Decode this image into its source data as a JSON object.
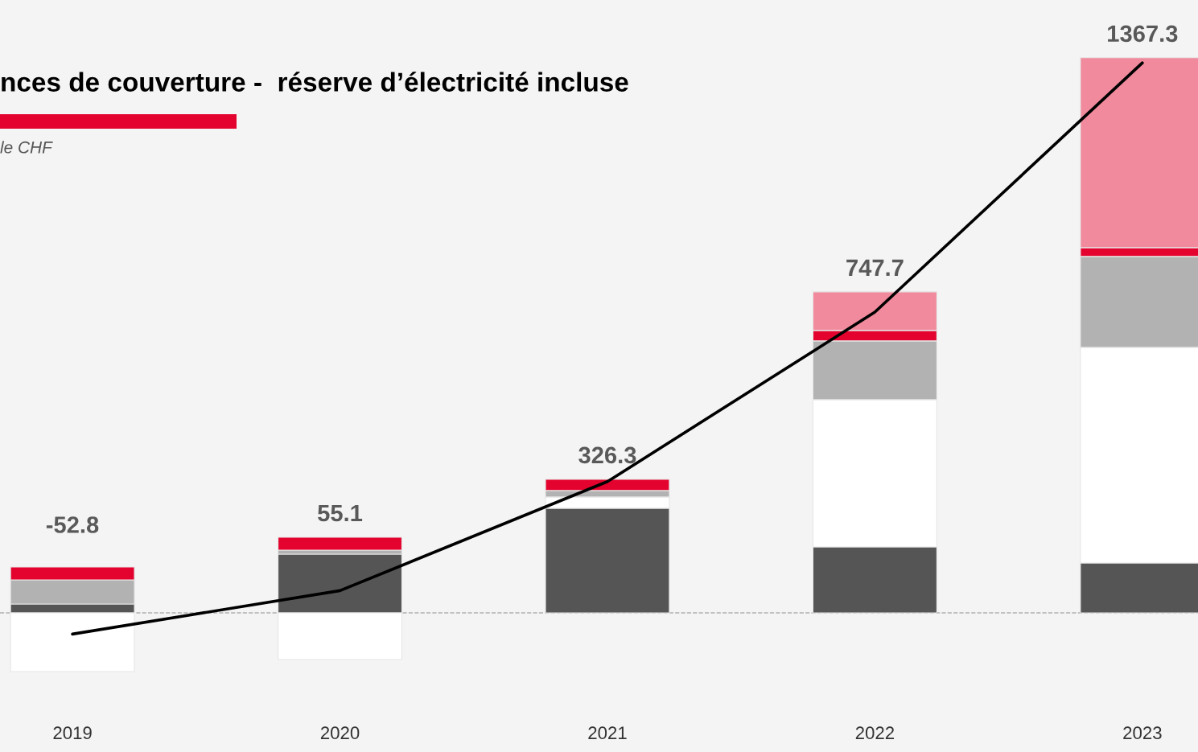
{
  "chart_data": {
    "type": "bar",
    "title": "nces de couverture -  réserve d’électricité incluse",
    "subtitle": "le CHF",
    "categories": [
      "2019",
      "2020",
      "2021",
      "2022",
      "2023"
    ],
    "stacked": true,
    "series": [
      {
        "color": "#555555",
        "values": [
          22,
          146,
          260,
          164,
          124
        ]
      },
      {
        "color": "#ffffff",
        "values": [
          -146,
          -116,
          28,
          366,
          536
        ]
      },
      {
        "color": "#b2b2b2",
        "values": [
          60,
          10,
          16,
          146,
          226
        ]
      },
      {
        "color": "#e4032e",
        "values": [
          32,
          32,
          28,
          26,
          22
        ]
      },
      {
        "color": "#f08a9c",
        "values": [
          null,
          null,
          null,
          96,
          472
        ]
      },
      {
        "type": "line",
        "color": "#000000",
        "values": [
          -52.8,
          55.1,
          326.3,
          747.7,
          1367.3
        ],
        "value_labels": [
          null,
          "55.1",
          "326.3",
          "747.7",
          "1367.3"
        ]
      }
    ],
    "tick_labels": "x",
    "annotations": [
      "-52.8"
    ],
    "ref_lines": [
      {
        "axis": "y",
        "value": 0,
        "color": "#b0b0b0",
        "line_style": "dashed"
      }
    ]
  }
}
